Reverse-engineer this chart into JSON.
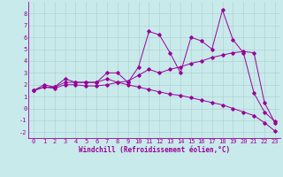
{
  "x_range": [
    -0.5,
    23.5
  ],
  "y_range": [
    -2.5,
    9.0
  ],
  "background_color": "#c8eaea",
  "line_color": "#990099",
  "grid_color": "#aacccc",
  "xlabel": "Windchill (Refroidissement éolien,°C)",
  "xlabel_fontsize": 5.5,
  "tick_fontsize": 5.0,
  "line1_x": [
    0,
    1,
    2,
    3,
    4,
    5,
    6,
    7,
    8,
    9,
    10,
    11,
    12,
    13,
    14,
    15,
    16,
    17,
    18,
    19,
    20,
    21,
    22,
    23
  ],
  "line1_y": [
    1.5,
    2.0,
    1.8,
    2.5,
    2.2,
    2.2,
    2.2,
    3.0,
    3.0,
    2.2,
    3.5,
    6.5,
    6.2,
    4.7,
    3.0,
    6.0,
    5.7,
    5.0,
    8.3,
    5.8,
    4.7,
    1.3,
    -0.3,
    -1.1
  ],
  "line2_x": [
    0,
    1,
    2,
    3,
    4,
    5,
    6,
    7,
    8,
    9,
    10,
    11,
    12,
    13,
    14,
    15,
    16,
    17,
    18,
    19,
    20,
    21,
    22,
    23
  ],
  "line2_y": [
    1.5,
    1.8,
    1.8,
    2.2,
    2.2,
    2.2,
    2.2,
    2.5,
    2.2,
    2.3,
    2.8,
    3.3,
    3.0,
    3.3,
    3.5,
    3.8,
    4.0,
    4.3,
    4.5,
    4.7,
    4.8,
    4.7,
    0.5,
    -1.2
  ],
  "line3_x": [
    0,
    1,
    2,
    3,
    4,
    5,
    6,
    7,
    8,
    9,
    10,
    11,
    12,
    13,
    14,
    15,
    16,
    17,
    18,
    19,
    20,
    21,
    22,
    23
  ],
  "line3_y": [
    1.5,
    1.8,
    1.7,
    2.0,
    2.0,
    1.9,
    1.9,
    2.0,
    2.2,
    2.0,
    1.8,
    1.6,
    1.4,
    1.2,
    1.1,
    0.9,
    0.7,
    0.5,
    0.3,
    0.0,
    -0.3,
    -0.6,
    -1.2,
    -1.9
  ],
  "yticks": [
    -2,
    -1,
    0,
    1,
    2,
    3,
    4,
    5,
    6,
    7,
    8
  ],
  "xticks": [
    0,
    1,
    2,
    3,
    4,
    5,
    6,
    7,
    8,
    9,
    10,
    11,
    12,
    13,
    14,
    15,
    16,
    17,
    18,
    19,
    20,
    21,
    22,
    23
  ],
  "marker_size": 1.8,
  "linewidth": 0.7
}
